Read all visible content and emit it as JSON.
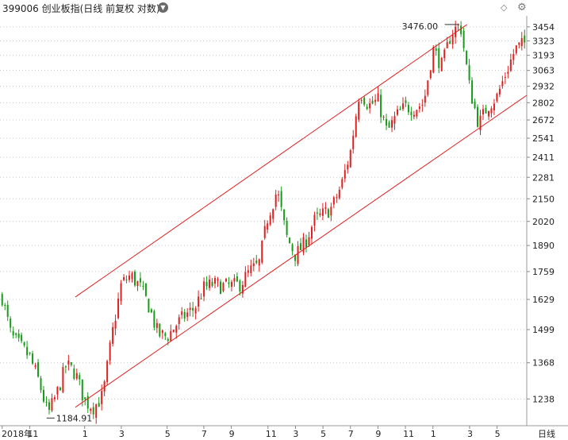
{
  "header": {
    "title": "399006 创业板指(日线 前复权 对数)",
    "dropdown_icon": "chevron-down-icon",
    "right_icons": [
      "diamond-icon",
      "gear-icon"
    ]
  },
  "period_label": "日线",
  "chart_data": {
    "type": "candlestick",
    "scale": "log",
    "ylim": [
      1150,
      3560
    ],
    "y_ticks": [
      1238,
      1368,
      1499,
      1629,
      1759,
      1890,
      2020,
      2150,
      2281,
      2411,
      2541,
      2672,
      2802,
      2932,
      3063,
      3193,
      3323,
      3454
    ],
    "x_ticks": [
      "2018年",
      "11",
      "1",
      "3",
      "5",
      "7",
      "9",
      "11",
      "1",
      "3",
      "5",
      "7",
      "9",
      "11",
      "1",
      "3",
      "5"
    ],
    "annotations": {
      "low": {
        "label": "1184.91",
        "value": 1184.91
      },
      "high": {
        "label": "3476.00",
        "value": 3476.0
      }
    },
    "colors": {
      "up": "#e02020",
      "down": "#1a9a1a",
      "channel": "#e02020",
      "grid": "#c8c8c8"
    },
    "price_path": [
      [
        1640,
        "2018年"
      ],
      [
        1470,
        ""
      ],
      [
        1430,
        ""
      ],
      [
        1390,
        "11"
      ],
      [
        1300,
        ""
      ],
      [
        1185,
        ""
      ],
      [
        1260,
        ""
      ],
      [
        1360,
        ""
      ],
      [
        1330,
        ""
      ],
      [
        1230,
        "1"
      ],
      [
        1210,
        ""
      ],
      [
        1250,
        ""
      ],
      [
        1480,
        ""
      ],
      [
        1700,
        "3"
      ],
      [
        1740,
        ""
      ],
      [
        1690,
        ""
      ],
      [
        1600,
        ""
      ],
      [
        1480,
        ""
      ],
      [
        1470,
        "5"
      ],
      [
        1520,
        ""
      ],
      [
        1560,
        ""
      ],
      [
        1590,
        ""
      ],
      [
        1680,
        "7"
      ],
      [
        1700,
        ""
      ],
      [
        1690,
        ""
      ],
      [
        1690,
        "9"
      ],
      [
        1700,
        ""
      ],
      [
        1760,
        ""
      ],
      [
        1790,
        ""
      ],
      [
        2050,
        "11"
      ],
      [
        2200,
        ""
      ],
      [
        1940,
        ""
      ],
      [
        1840,
        "3"
      ],
      [
        1900,
        ""
      ],
      [
        2020,
        ""
      ],
      [
        2060,
        "5"
      ],
      [
        2100,
        ""
      ],
      [
        2230,
        ""
      ],
      [
        2450,
        "7"
      ],
      [
        2900,
        ""
      ],
      [
        2780,
        ""
      ],
      [
        2820,
        "9"
      ],
      [
        2580,
        ""
      ],
      [
        2700,
        ""
      ],
      [
        2770,
        "11"
      ],
      [
        2760,
        ""
      ],
      [
        2800,
        ""
      ],
      [
        3250,
        "1"
      ],
      [
        3100,
        ""
      ],
      [
        3400,
        ""
      ],
      [
        3476,
        ""
      ],
      [
        2920,
        "3"
      ],
      [
        2640,
        ""
      ],
      [
        2780,
        ""
      ],
      [
        2850,
        "5"
      ],
      [
        3050,
        ""
      ],
      [
        3250,
        ""
      ],
      [
        3300,
        ""
      ]
    ],
    "channel_lines": [
      {
        "name": "upper",
        "from": [
          "2019-01",
          1640
        ],
        "to": [
          "2020-02",
          3476
        ]
      },
      {
        "name": "lower",
        "from": [
          "2019-01",
          1210
        ],
        "to": [
          "2020-07",
          2860
        ]
      }
    ]
  }
}
